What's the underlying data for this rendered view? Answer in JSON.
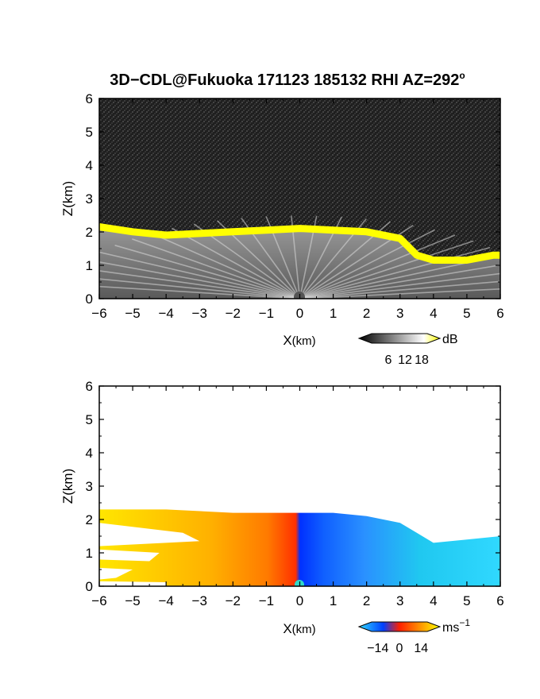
{
  "chart_data": [
    {
      "type": "heatmap",
      "title": "3D−CDL@Fukuoka 171123 185132 RHI AZ=292",
      "title_superscript": "o",
      "xlabel": "X",
      "xlabel_unit": "(km)",
      "ylabel": "Z(km)",
      "xlim": [
        -6,
        6
      ],
      "ylim": [
        0,
        6
      ],
      "x_ticks": [
        "−6",
        "−5",
        "−4",
        "−3",
        "−2",
        "−1",
        "0",
        "1",
        "2",
        "3",
        "4",
        "5",
        "6"
      ],
      "y_ticks": [
        "0",
        "1",
        "2",
        "3",
        "4",
        "5",
        "6"
      ],
      "colorbar": {
        "unit": "dB",
        "ticks": [
          "6",
          "12",
          "18"
        ],
        "range": [
          0,
          20
        ],
        "colormap": "grayscale-to-yellow"
      },
      "cloud_top_km": [
        [
          -6,
          2.25
        ],
        [
          -5,
          2.1
        ],
        [
          -4,
          2.0
        ],
        [
          -3,
          2.05
        ],
        [
          -2,
          2.1
        ],
        [
          -1,
          2.15
        ],
        [
          0,
          2.2
        ],
        [
          1,
          2.15
        ],
        [
          2,
          2.1
        ],
        [
          3,
          1.9
        ],
        [
          3.5,
          1.4
        ],
        [
          4,
          1.25
        ],
        [
          5,
          1.25
        ],
        [
          5.8,
          1.4
        ],
        [
          6,
          1.4
        ]
      ]
    },
    {
      "type": "heatmap",
      "xlabel": "X",
      "xlabel_unit": "(km)",
      "ylabel": "Z(km)",
      "xlim": [
        -6,
        6
      ],
      "ylim": [
        0,
        6
      ],
      "x_ticks": [
        "−6",
        "−5",
        "−4",
        "−3",
        "−2",
        "−1",
        "0",
        "1",
        "2",
        "3",
        "4",
        "5",
        "6"
      ],
      "y_ticks": [
        "0",
        "1",
        "2",
        "3",
        "4",
        "5",
        "6"
      ],
      "colorbar": {
        "unit": "ms",
        "unit_superscript": "−1",
        "ticks": [
          "−14",
          "0",
          "14"
        ],
        "range": [
          -18,
          18
        ],
        "colormap": "cyan-blue-red-yellow"
      },
      "data_top_km": [
        [
          -6,
          2.3
        ],
        [
          -4,
          2.3
        ],
        [
          -2,
          2.2
        ],
        [
          0,
          2.2
        ],
        [
          1,
          2.2
        ],
        [
          2,
          2.1
        ],
        [
          3,
          1.9
        ],
        [
          3.5,
          1.6
        ],
        [
          4,
          1.3
        ],
        [
          5,
          1.4
        ],
        [
          6,
          1.5
        ]
      ]
    }
  ],
  "colors": {
    "yellow": "#ffff00",
    "background_noise": "#222222",
    "frame": "#000000"
  }
}
